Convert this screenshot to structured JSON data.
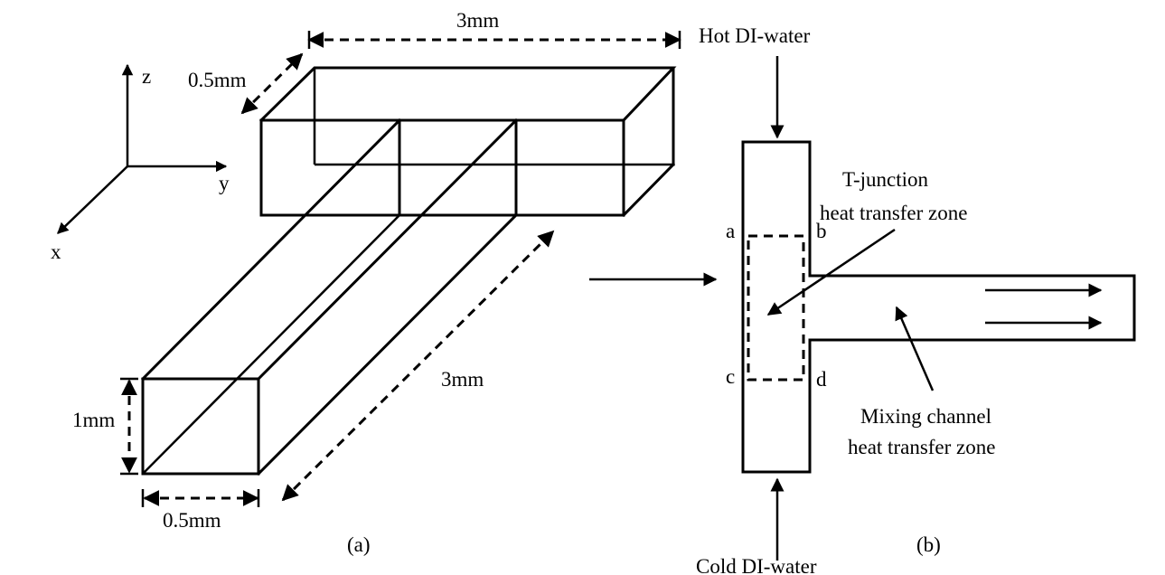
{
  "panel_a": {
    "caption": "(a)",
    "axes": {
      "z": "z",
      "y": "y",
      "x": "x"
    },
    "dimensions": {
      "top_length": "3mm",
      "top_width": "0.5mm",
      "branch_length": "3mm",
      "height": "1mm",
      "bottom_width": "0.5mm"
    }
  },
  "panel_b": {
    "caption": "(b)",
    "inlet_top": "Hot DI-water",
    "inlet_bottom": "Cold DI-water",
    "corners": {
      "a": "a",
      "b": "b",
      "c": "c",
      "d": "d"
    },
    "zone_tjunction": {
      "line1": "T-junction",
      "line2": "heat transfer zone"
    },
    "zone_mixing": {
      "line1": "Mixing channel",
      "line2": "heat transfer zone"
    }
  }
}
